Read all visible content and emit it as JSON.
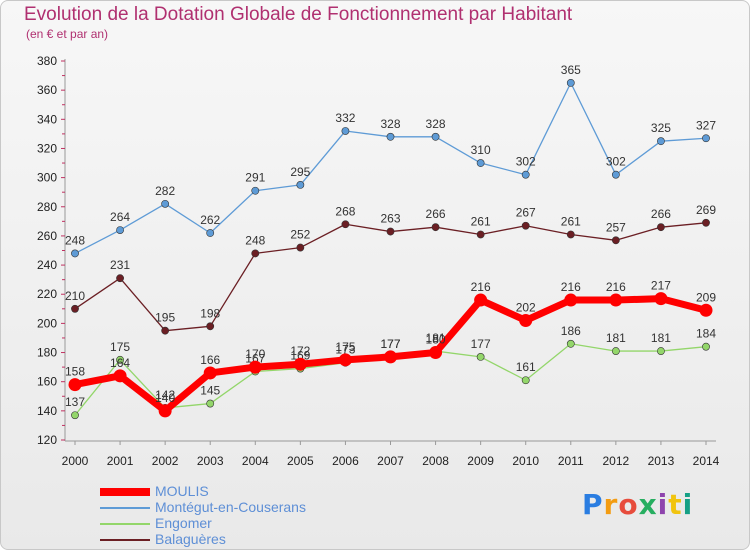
{
  "header": {
    "title": "Evolution de la Dotation Globale de Fonctionnement par Habitant",
    "subtitle": "(en € et par an)"
  },
  "logo": {
    "text": "Proxiti",
    "colors": [
      "#2a7de1",
      "#f39c12",
      "#e74c3c",
      "#27ae60",
      "#8e44ad",
      "#f1c40f",
      "#16a085"
    ]
  },
  "chart_data": {
    "type": "line",
    "title": "Evolution de la Dotation Globale de Fonctionnement par Habitant",
    "subtitle": "(en € et par an)",
    "xlabel": "",
    "ylabel": "",
    "x": [
      "2000",
      "2001",
      "2002",
      "2003",
      "2004",
      "2005",
      "2006",
      "2007",
      "2008",
      "2009",
      "2010",
      "2011",
      "2012",
      "2013",
      "2014"
    ],
    "ylim": [
      120,
      380
    ],
    "yticks": [
      120,
      140,
      160,
      180,
      200,
      220,
      240,
      260,
      280,
      300,
      320,
      340,
      360,
      380
    ],
    "grid": false,
    "legend_position": "bottom-left",
    "series": [
      {
        "name": "Montégut-en-Couserans",
        "color": "#5e9bd6",
        "values": [
          248,
          264,
          282,
          262,
          291,
          295,
          332,
          328,
          328,
          310,
          302,
          365,
          302,
          325,
          327
        ]
      },
      {
        "name": "Balaguères",
        "color": "#6b1f24",
        "values": [
          210,
          231,
          195,
          198,
          248,
          252,
          268,
          263,
          266,
          261,
          267,
          261,
          257,
          266,
          269
        ]
      },
      {
        "name": "Engomer",
        "color": "#93d66a",
        "values": [
          137,
          175,
          142,
          145,
          167,
          169,
          173,
          177,
          181,
          177,
          161,
          186,
          181,
          181,
          184
        ]
      },
      {
        "name": "MOULIS",
        "color": "#ff0000",
        "values": [
          158,
          164,
          140,
          166,
          170,
          172,
          175,
          177,
          180,
          216,
          202,
          216,
          216,
          217,
          209
        ]
      }
    ],
    "legend_order": [
      "MOULIS",
      "Montégut-en-Couserans",
      "Engomer",
      "Balaguères"
    ]
  }
}
